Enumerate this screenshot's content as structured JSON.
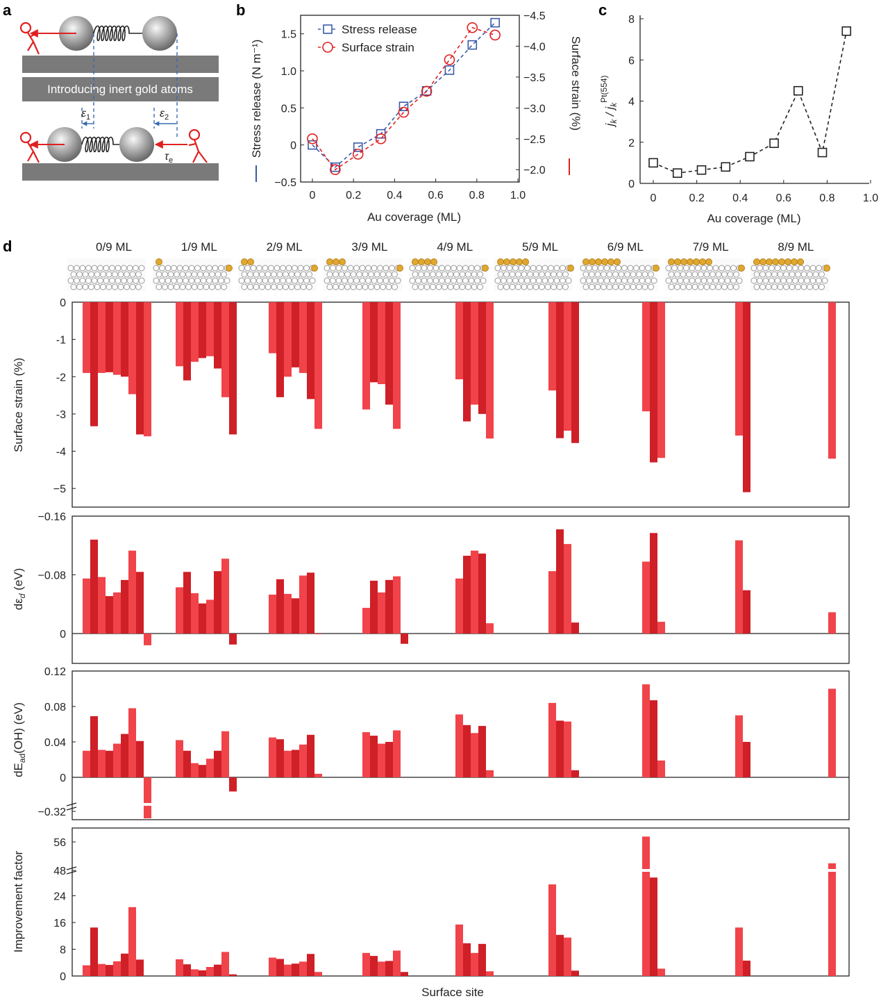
{
  "panel_labels": {
    "a": "a",
    "b": "b",
    "c": "c",
    "d": "d"
  },
  "schematic": {
    "box_text": "Introducing inert gold atoms",
    "eps1": "ε",
    "eps1_sub": "1",
    "eps2": "ε",
    "eps2_sub": "2",
    "tau": "τ",
    "tau_sub": "e",
    "colors": {
      "arrow": "#e02020",
      "plate": "#777777",
      "dash": "#3a6ab0"
    }
  },
  "chart_data": [
    {
      "id": "b",
      "type": "line",
      "xlabel": "Au coverage (ML)",
      "ylabel": "Stress release (N m⁻¹)",
      "y2label": "Surface strain (%)",
      "xlim": [
        0,
        1.0
      ],
      "ylim": [
        -0.5,
        1.75
      ],
      "y2lim": [
        -1.8,
        -4.5
      ],
      "xticks": [
        "0",
        "0.2",
        "0.4",
        "0.6",
        "0.8",
        "1.0"
      ],
      "yticks": [
        "−0.5",
        "0",
        "0.5",
        "1.0",
        "1.5"
      ],
      "y2ticks": [
        "−2.0",
        "−2.5",
        "−3.0",
        "−3.5",
        "−4.0",
        "−4.5"
      ],
      "legend_position": "top-left",
      "series": [
        {
          "name": "Stress release",
          "marker": "square",
          "color": "#3a5aa8",
          "axis": "left",
          "x": [
            0,
            0.111,
            0.222,
            0.333,
            0.444,
            0.556,
            0.667,
            0.778,
            0.889
          ],
          "y": [
            0.0,
            -0.3,
            -0.03,
            0.15,
            0.52,
            0.73,
            1.01,
            1.35,
            1.65
          ]
        },
        {
          "name": "Surface strain",
          "marker": "circle",
          "color": "#e02020",
          "axis": "right",
          "x": [
            0,
            0.111,
            0.222,
            0.333,
            0.444,
            0.556,
            0.667,
            0.778,
            0.889
          ],
          "y": [
            -2.5,
            -2.0,
            -2.25,
            -2.5,
            -2.93,
            -3.27,
            -3.78,
            -4.3,
            -4.18
          ]
        }
      ]
    },
    {
      "id": "c",
      "type": "line",
      "xlabel": "Au coverage (ML)",
      "ylabel": "j_k / j_k^Pt(554)",
      "ylabel_main": "j",
      "ylabel_sub1": "k",
      "ylabel_mid": " / j",
      "ylabel_sub2": "k",
      "ylabel_sup": "Pt(554)",
      "xlim": [
        0,
        1.0
      ],
      "ylim": [
        0,
        8
      ],
      "xticks": [
        "0",
        "0.2",
        "0.4",
        "0.6",
        "0.8",
        "1.0"
      ],
      "yticks": [
        "0",
        "2",
        "4",
        "6",
        "8"
      ],
      "series": [
        {
          "marker": "square",
          "color": "#222222",
          "x": [
            0,
            0.111,
            0.222,
            0.333,
            0.444,
            0.556,
            0.667,
            0.778,
            0.889
          ],
          "y": [
            1.0,
            0.5,
            0.65,
            0.8,
            1.3,
            1.95,
            4.5,
            1.5,
            7.4
          ]
        }
      ]
    },
    {
      "id": "d",
      "type": "bar",
      "xlabel": "Surface site",
      "groups": [
        "0/9 ML",
        "1/9 ML",
        "2/9 ML",
        "3/9 ML",
        "4/9 ML",
        "5/9 ML",
        "6/9 ML",
        "7/9 ML",
        "8/9 ML"
      ],
      "subpanels": [
        {
          "ylabel": "Surface strain (%)",
          "ylim": [
            -5.5,
            0
          ],
          "yticks": [
            "0",
            "-1",
            "-2",
            "-3",
            "-4",
            "−5"
          ],
          "values": [
            [
              -1.9,
              -3.33,
              -1.9,
              -1.88,
              -1.95,
              -2.0,
              -2.47,
              -3.55,
              -3.6
            ],
            [
              -1.72,
              -2.1,
              -1.6,
              -1.5,
              -1.45,
              -1.78,
              -2.55,
              -3.55
            ],
            [
              -1.37,
              -2.55,
              -2.0,
              -1.75,
              -1.9,
              -2.6,
              -3.4
            ],
            [
              -2.88,
              -2.15,
              -2.2,
              -2.75,
              -3.4
            ],
            [
              -2.07,
              -3.2,
              -2.75,
              -3.0,
              -3.66
            ],
            [
              -2.37,
              -3.65,
              -3.45,
              -3.78
            ],
            [
              -2.93,
              -4.3,
              -4.18
            ],
            [
              -3.58,
              -5.1
            ],
            [
              -4.2
            ]
          ]
        },
        {
          "ylabel": "dε_d (eV)",
          "ylabel_main": "dε",
          "ylabel_sub": "d",
          "ylabel_unit": " (eV)",
          "ylim": [
            0.035,
            -0.16
          ],
          "yticks": [
            "0",
            "−0.08",
            "−0.16"
          ],
          "values": [
            [
              -0.075,
              -0.128,
              -0.077,
              -0.051,
              -0.056,
              -0.073,
              -0.113,
              -0.084,
              0.016
            ],
            [
              -0.063,
              -0.084,
              -0.055,
              -0.041,
              -0.046,
              -0.085,
              -0.102,
              0.015
            ],
            [
              -0.053,
              -0.074,
              -0.054,
              -0.048,
              -0.079,
              -0.083,
              0.001
            ],
            [
              -0.035,
              -0.072,
              -0.056,
              -0.073,
              -0.078,
              0.014
            ],
            [
              -0.075,
              -0.106,
              -0.113,
              -0.109,
              -0.014
            ],
            [
              -0.085,
              -0.142,
              -0.122,
              -0.015
            ],
            [
              -0.098,
              -0.137,
              -0.016
            ],
            [
              -0.127,
              -0.059
            ],
            [
              -0.029
            ]
          ]
        },
        {
          "ylabel": "dE_ad(OH) (eV)",
          "ylabel_main": "dE",
          "ylabel_sub": "ad",
          "ylabel_unit": "(OH) (eV)",
          "ylim": [
            -0.032,
            0.12
          ],
          "yticks": [
            "0.12",
            "0.08",
            "0.04",
            "0",
            "−0.32"
          ],
          "axis_break": true,
          "values": [
            [
              0.03,
              0.069,
              0.031,
              0.03,
              0.038,
              0.049,
              0.078,
              0.041,
              -0.32
            ],
            [
              0.042,
              0.03,
              0.016,
              0.014,
              0.021,
              0.03,
              0.052,
              -0.016
            ],
            [
              0.045,
              0.043,
              0.03,
              0.031,
              0.037,
              0.048,
              0.004
            ],
            [
              0.051,
              0.047,
              0.038,
              0.04,
              0.053
            ],
            [
              0.071,
              0.059,
              0.05,
              0.058,
              0.008
            ],
            [
              0.084,
              0.064,
              0.063,
              0.008
            ],
            [
              0.105,
              0.087,
              0.019
            ],
            [
              0.07,
              0.04
            ],
            [
              0.1
            ]
          ]
        },
        {
          "ylabel": "Improvement factor",
          "ylim": [
            0,
            56
          ],
          "yticks": [
            "0",
            "8",
            "16",
            "24",
            "48",
            "56"
          ],
          "axis_break": true,
          "values": [
            [
              3.2,
              14.5,
              3.6,
              3.3,
              4.4,
              6.7,
              20.6,
              4.9,
              0
            ],
            [
              5.0,
              3.5,
              2.0,
              1.7,
              2.7,
              3.4,
              7.2,
              0.5
            ],
            [
              5.5,
              5.1,
              3.4,
              3.7,
              4.3,
              6.6,
              1.2
            ],
            [
              6.9,
              6.0,
              4.3,
              4.5,
              7.6,
              1.2
            ],
            [
              15.4,
              9.8,
              6.9,
              9.6,
              1.4
            ],
            [
              27.4,
              12.3,
              11.5,
              1.6
            ],
            [
              57.5,
              46.0,
              2.2
            ],
            [
              14.5,
              4.6
            ],
            [
              50.0
            ]
          ]
        }
      ]
    }
  ]
}
